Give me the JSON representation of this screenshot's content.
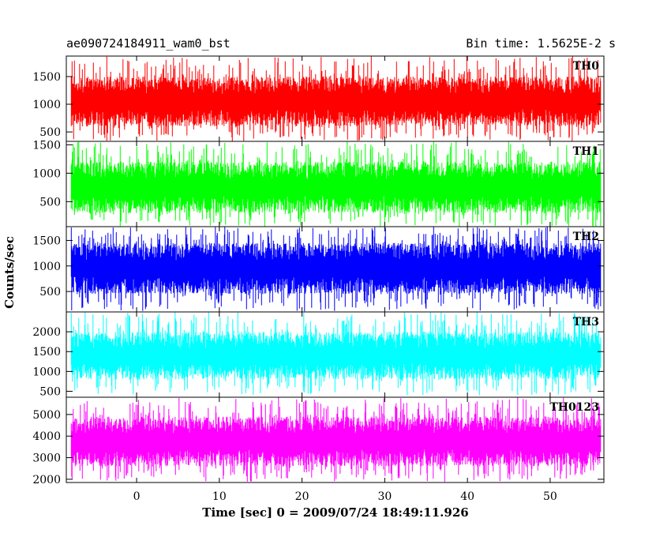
{
  "chart_data": {
    "type": "line",
    "title_left": "ae090724184911_wam0_bst",
    "title_right": "Bin time: 1.5625E-2 s",
    "xlabel": "Time [sec] 0 = 2009/07/24 18:49:11.926",
    "ylabel": "Counts/sec",
    "xlim": [
      -8.5,
      56.5
    ],
    "data_x_range": [
      -7.9,
      56.1
    ],
    "x_ticks": [
      0,
      10,
      20,
      30,
      40,
      50
    ],
    "bin_time_s": 0.015625,
    "panels": [
      {
        "name": "TH0",
        "color": "#ff0000",
        "ylim": [
          330,
          1870
        ],
        "y_ticks": [
          500,
          1000,
          1500
        ],
        "typical_range": [
          600,
          1500
        ],
        "min_level": 330,
        "max_level": 1870
      },
      {
        "name": "TH1",
        "color": "#00ff00",
        "ylim": [
          60,
          1560
        ],
        "y_ticks": [
          500,
          1000,
          1500
        ],
        "typical_range": [
          300,
          1200
        ],
        "min_level": 60,
        "max_level": 1560
      },
      {
        "name": "TH2",
        "color": "#0000ff",
        "ylim": [
          100,
          1770
        ],
        "y_ticks": [
          500,
          1000,
          1500
        ],
        "typical_range": [
          450,
          1450
        ],
        "min_level": 110,
        "max_level": 1770
      },
      {
        "name": "TH3",
        "color": "#00ffff",
        "ylim": [
          350,
          2500
        ],
        "y_ticks": [
          500,
          1000,
          1500,
          2000
        ],
        "typical_range": [
          800,
          2000
        ],
        "min_level": 400,
        "max_level": 2500
      },
      {
        "name": "TH0123",
        "color": "#ff00ff",
        "ylim": [
          1850,
          5800
        ],
        "y_ticks": [
          2000,
          3000,
          4000,
          5000
        ],
        "typical_range": [
          2600,
          4900
        ],
        "min_level": 1880,
        "max_level": 5800
      }
    ]
  }
}
